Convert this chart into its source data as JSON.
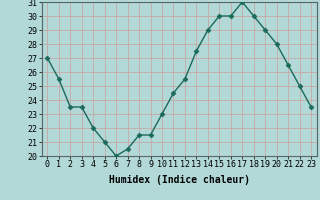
{
  "x": [
    0,
    1,
    2,
    3,
    4,
    5,
    6,
    7,
    8,
    9,
    10,
    11,
    12,
    13,
    14,
    15,
    16,
    17,
    18,
    19,
    20,
    21,
    22,
    23
  ],
  "y": [
    27,
    25.5,
    23.5,
    23.5,
    22,
    21,
    20,
    20.5,
    21.5,
    21.5,
    23,
    24.5,
    25.5,
    27.5,
    29,
    30,
    30,
    31,
    30,
    29,
    28,
    26.5,
    25,
    23.5
  ],
  "line_color": "#1a6b5a",
  "marker": "D",
  "marker_size": 2.5,
  "bg_color": "#b2d8d8",
  "grid_color": "#c8a8a8",
  "xlabel": "Humidex (Indice chaleur)",
  "ylim": [
    20,
    31
  ],
  "xlim": [
    -0.5,
    23.5
  ],
  "yticks": [
    20,
    21,
    22,
    23,
    24,
    25,
    26,
    27,
    28,
    29,
    30,
    31
  ],
  "xticks": [
    0,
    1,
    2,
    3,
    4,
    5,
    6,
    7,
    8,
    9,
    10,
    11,
    12,
    13,
    14,
    15,
    16,
    17,
    18,
    19,
    20,
    21,
    22,
    23
  ],
  "label_fontsize": 7,
  "tick_fontsize": 6
}
